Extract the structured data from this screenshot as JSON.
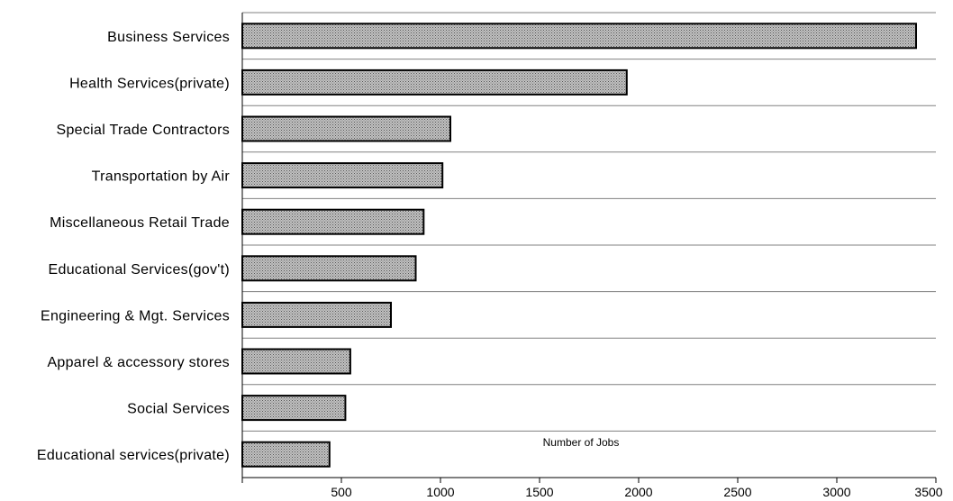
{
  "chart_data": {
    "type": "bar",
    "orientation": "horizontal",
    "categories": [
      "Business Services",
      "Health Services(private)",
      "Special Trade Contractors",
      "Transportation by Air",
      "Miscellaneous Retail Trade",
      "Educational Services(gov't)",
      "Engineering & Mgt. Services",
      "Apparel & accessory stores",
      "Social Services",
      "Educational services(private)"
    ],
    "values": [
      3400,
      1940,
      1050,
      1010,
      915,
      875,
      750,
      545,
      520,
      440
    ],
    "xlabel": "Number of Jobs",
    "xlim": [
      0,
      3500
    ],
    "xticks": [
      0,
      500,
      1000,
      1500,
      2000,
      2500,
      3000,
      3500
    ],
    "xtick_labels": [
      "",
      "500",
      "1000",
      "1500",
      "2000",
      "2500",
      "3000",
      "3500"
    ],
    "grid": "horizontal separators between categories",
    "bar_fill": "dotted gray pattern",
    "colors": {
      "bar_fill": "#bdbdbd",
      "bar_dots": "#555555",
      "bar_edge": "#000000",
      "gridline": "#808080",
      "axis": "#000000"
    }
  }
}
